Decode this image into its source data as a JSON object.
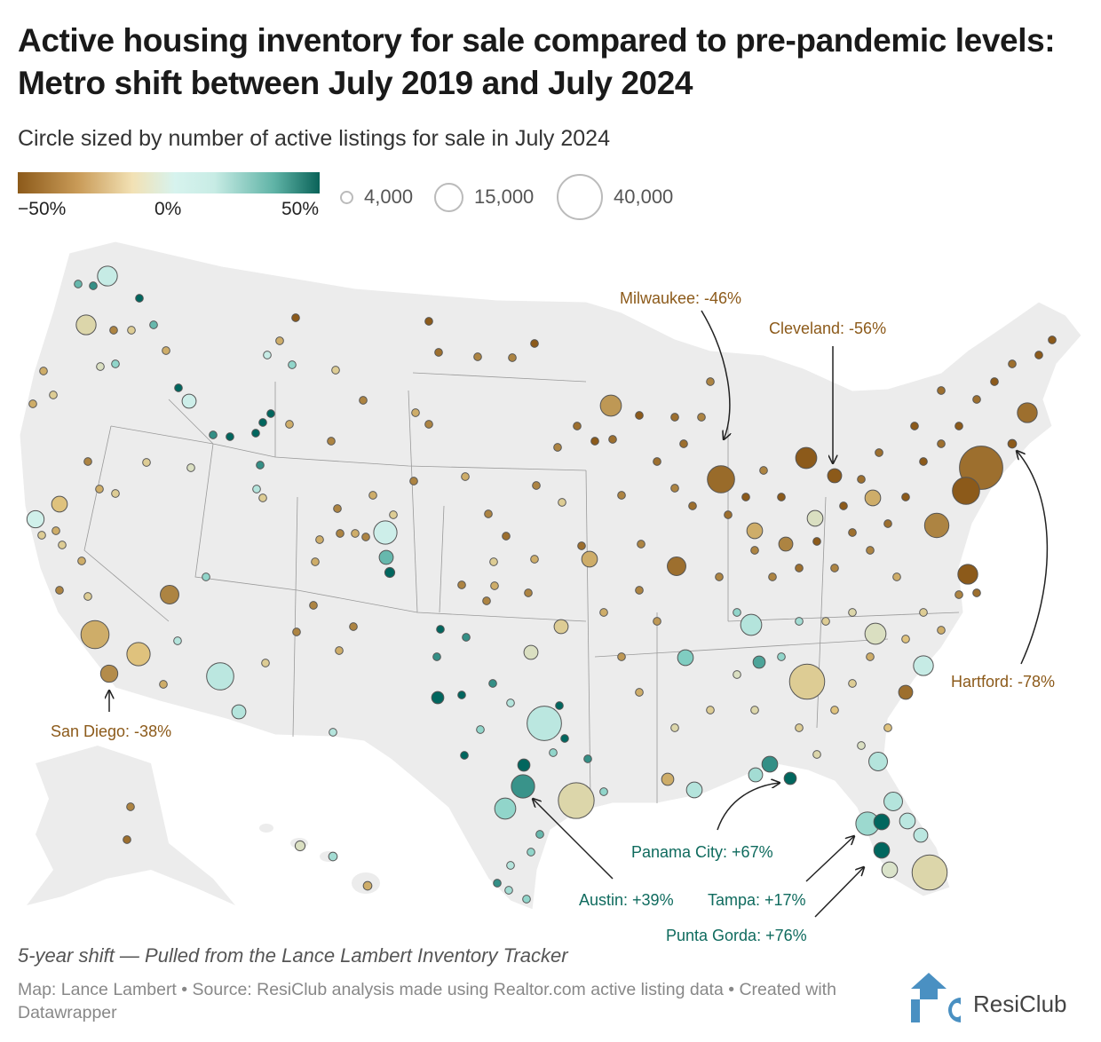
{
  "header": {
    "title": "Active housing inventory for sale compared to pre-pandemic levels: Metro shift between July 2019 and July 2024",
    "subtitle": "Circle sized by number of active listings for sale in July 2024"
  },
  "legend": {
    "color_scale": {
      "min_label": "−50%",
      "mid_label": "0%",
      "max_label": "50%",
      "colors": [
        "#8c5a1a",
        "#dfc27d",
        "#d7f3ee",
        "#01665e"
      ]
    },
    "size_scale": [
      {
        "label": "4,000",
        "value": 4000
      },
      {
        "label": "15,000",
        "value": 15000
      },
      {
        "label": "40,000",
        "value": 40000
      }
    ]
  },
  "annotations": [
    {
      "label": "Milwaukee: -46%",
      "color": "#8c5a1a"
    },
    {
      "label": "Cleveland: -56%",
      "color": "#8c5a1a"
    },
    {
      "label": "Hartford: -78%",
      "color": "#8c5a1a"
    },
    {
      "label": "San Diego: -38%",
      "color": "#8c5a1a"
    },
    {
      "label": "Panama City: +67%",
      "color": "#0f6b5e"
    },
    {
      "label": "Austin: +39%",
      "color": "#0f6b5e"
    },
    {
      "label": "Tampa: +17%",
      "color": "#0f6b5e"
    },
    {
      "label": "Punta Gorda: +76%",
      "color": "#0f6b5e"
    }
  ],
  "marker_fields": [
    "change_pct",
    "active_listings"
  ],
  "markers": [
    [
      -45,
      38000
    ],
    [
      -50,
      15000
    ],
    [
      -40,
      12000
    ],
    [
      -50,
      8000
    ],
    [
      -45,
      8000
    ],
    [
      -46,
      15000
    ],
    [
      -55,
      9000
    ],
    [
      -56,
      4000
    ],
    [
      -35,
      9000
    ],
    [
      -45,
      7000
    ],
    [
      -20,
      25000
    ],
    [
      -10,
      9000
    ],
    [
      5,
      8000
    ],
    [
      10,
      9000
    ],
    [
      25,
      5000
    ],
    [
      35,
      3000
    ],
    [
      -38,
      6000
    ],
    [
      -30,
      16000
    ],
    [
      -25,
      11000
    ],
    [
      -40,
      7000
    ],
    [
      8,
      15000
    ],
    [
      10,
      4000
    ],
    [
      -25,
      5000
    ],
    [
      2,
      6000
    ],
    [
      -15,
      8000
    ],
    [
      5,
      8000
    ],
    [
      3,
      4000
    ],
    [
      3,
      11000
    ],
    [
      30,
      4000
    ],
    [
      60,
      2000
    ],
    [
      8,
      24000
    ],
    [
      39,
      11000
    ],
    [
      20,
      9000
    ],
    [
      -15,
      26000
    ],
    [
      60,
      3000
    ],
    [
      55,
      3000
    ],
    [
      -30,
      5000
    ],
    [
      -20,
      4000
    ],
    [
      -10,
      4000
    ],
    [
      10,
      7000
    ],
    [
      17,
      11000
    ],
    [
      70,
      5000
    ],
    [
      10,
      7000
    ],
    [
      -15,
      25000
    ],
    [
      76,
      5000
    ],
    [
      8,
      5000
    ],
    [
      8,
      4000
    ],
    [
      -8,
      5000
    ],
    [
      67,
      3000
    ],
    [
      40,
      5000
    ],
    [
      15,
      4000
    ],
    [
      10,
      5000
    ],
    [
      -30,
      3000
    ],
    [
      -40,
      4000
    ],
    [
      -30,
      5000
    ],
    [
      -10,
      5000
    ],
    [
      -30,
      5000
    ],
    [
      -45,
      4000
    ],
    [
      -78,
      1500
    ],
    [
      30,
      1200
    ],
    [
      40,
      1200
    ],
    [
      60,
      1200
    ],
    [
      30,
      1200
    ],
    [
      -30,
      1200
    ],
    [
      -20,
      1200
    ],
    [
      -40,
      1200
    ],
    [
      -10,
      1200
    ],
    [
      20,
      1200
    ],
    [
      60,
      1200
    ],
    [
      40,
      1200
    ],
    [
      50,
      1200
    ],
    [
      55,
      1200
    ],
    [
      60,
      1200
    ],
    [
      65,
      1200
    ],
    [
      40,
      1200
    ],
    [
      10,
      1200
    ],
    [
      -20,
      1200
    ],
    [
      -50,
      1200
    ],
    [
      -30,
      1200
    ],
    [
      -20,
      1200
    ],
    [
      20,
      1200
    ],
    [
      5,
      1200
    ],
    [
      -30,
      1200
    ],
    [
      -20,
      1200
    ],
    [
      -30,
      1200
    ],
    [
      -40,
      1200
    ],
    [
      -30,
      1200
    ],
    [
      -20,
      1200
    ],
    [
      -20,
      1200
    ],
    [
      -30,
      1200
    ],
    [
      -20,
      1200
    ],
    [
      -30,
      1200
    ],
    [
      -20,
      1200
    ],
    [
      -40,
      1200
    ],
    [
      10,
      1200
    ],
    [
      20,
      1200
    ],
    [
      -20,
      1200
    ],
    [
      -30,
      1200
    ],
    [
      -20,
      1200
    ],
    [
      -10,
      1200
    ],
    [
      -40,
      1200
    ],
    [
      -40,
      1200
    ],
    [
      -30,
      1200
    ],
    [
      -30,
      1200
    ],
    [
      -30,
      1200
    ],
    [
      -40,
      1200
    ],
    [
      -20,
      1200
    ],
    [
      -30,
      1200
    ],
    [
      -40,
      1200
    ],
    [
      -30,
      1200
    ],
    [
      -40,
      1200
    ],
    [
      -40,
      1200
    ],
    [
      -40,
      1200
    ],
    [
      -40,
      1200
    ],
    [
      10,
      1200
    ],
    [
      -30,
      1200
    ],
    [
      -50,
      1200
    ],
    [
      -40,
      1200
    ],
    [
      -40,
      1200
    ],
    [
      -50,
      1200
    ],
    [
      -45,
      1200
    ],
    [
      -40,
      1200
    ],
    [
      -30,
      1200
    ],
    [
      -40,
      1200
    ],
    [
      -30,
      1200
    ],
    [
      -40,
      1200
    ],
    [
      -45,
      1200
    ],
    [
      -40,
      1200
    ],
    [
      -30,
      1200
    ],
    [
      -40,
      1200
    ],
    [
      -40,
      1200
    ],
    [
      -30,
      1200
    ],
    [
      -20,
      1200
    ],
    [
      -20,
      1200
    ],
    [
      -40,
      1200
    ],
    [
      -45,
      1200
    ],
    [
      -40,
      1200
    ],
    [
      -40,
      1200
    ],
    [
      -40,
      1200
    ],
    [
      -40,
      1200
    ],
    [
      60,
      1200
    ],
    [
      40,
      1200
    ],
    [
      40,
      1200
    ],
    [
      60,
      1200
    ],
    [
      60,
      1200
    ],
    [
      20,
      1200
    ],
    [
      40,
      1200
    ],
    [
      10,
      1200
    ],
    [
      60,
      1200
    ],
    [
      70,
      1200
    ],
    [
      20,
      1200
    ],
    [
      40,
      1200
    ],
    [
      20,
      1200
    ],
    [
      30,
      1200
    ],
    [
      20,
      1200
    ],
    [
      10,
      1200
    ],
    [
      15,
      1200
    ],
    [
      20,
      1200
    ],
    [
      40,
      1200
    ],
    [
      -45,
      1200
    ],
    [
      -50,
      1200
    ],
    [
      -45,
      1200
    ],
    [
      -50,
      1200
    ],
    [
      -45,
      1200
    ],
    [
      -45,
      1200
    ],
    [
      -40,
      1200
    ],
    [
      -40,
      1200
    ],
    [
      -45,
      1200
    ],
    [
      -40,
      1200
    ],
    [
      -45,
      1200
    ],
    [
      -45,
      1200
    ],
    [
      -50,
      1200
    ],
    [
      -40,
      1200
    ],
    [
      -50,
      1200
    ],
    [
      -40,
      1200
    ],
    [
      -40,
      1200
    ],
    [
      -45,
      1200
    ],
    [
      -50,
      1200
    ],
    [
      -40,
      1200
    ],
    [
      -45,
      1200
    ],
    [
      -40,
      1200
    ],
    [
      -45,
      1200
    ],
    [
      -50,
      1200
    ],
    [
      -50,
      1200
    ],
    [
      -45,
      1200
    ],
    [
      -50,
      1200
    ],
    [
      -45,
      1200
    ],
    [
      -50,
      1200
    ],
    [
      -45,
      1200
    ],
    [
      -50,
      1200
    ],
    [
      -50,
      1200
    ],
    [
      -45,
      1200
    ],
    [
      -50,
      1200
    ],
    [
      -45,
      1200
    ],
    [
      -45,
      1200
    ],
    [
      -50,
      1200
    ],
    [
      -30,
      1200
    ],
    [
      -20,
      1200
    ],
    [
      -30,
      1200
    ],
    [
      -40,
      1200
    ],
    [
      -45,
      1200
    ],
    [
      -25,
      1200
    ],
    [
      -15,
      1200
    ],
    [
      -20,
      1200
    ],
    [
      15,
      1200
    ],
    [
      20,
      1200
    ],
    [
      -10,
      1200
    ],
    [
      -20,
      1200
    ],
    [
      -15,
      1200
    ],
    [
      -30,
      1200
    ],
    [
      -35,
      1200
    ],
    [
      -30,
      1200
    ],
    [
      -35,
      1200
    ],
    [
      -40,
      1200
    ],
    [
      20,
      1200
    ],
    [
      -15,
      1200
    ],
    [
      -20,
      1200
    ],
    [
      -25,
      1200
    ],
    [
      -20,
      1200
    ],
    [
      -30,
      1200
    ],
    [
      -25,
      1200
    ],
    [
      -10,
      1200
    ],
    [
      -15,
      1200
    ],
    [
      -40,
      1200
    ],
    [
      -45,
      1200
    ],
    [
      -10,
      2000
    ],
    [
      15,
      1500
    ],
    [
      -30,
      1500
    ]
  ],
  "footer": {
    "note": "5-year shift — Pulled from the Lance Lambert Inventory Tracker",
    "credit": "Map: Lance Lambert • Source: ResiClub analysis made using Realtor.com active listing data • Created with Datawrapper",
    "logo_text": "ResiClub",
    "logo_color": "#4a90c2"
  }
}
